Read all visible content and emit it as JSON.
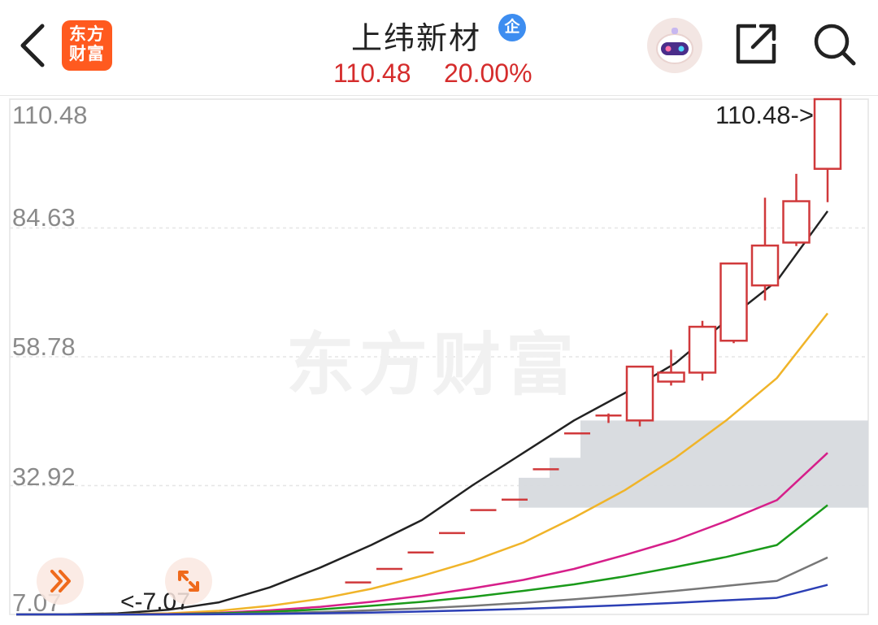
{
  "header": {
    "back_icon": "chevron-left-icon",
    "logo_text": "东方\n财富",
    "stock_name": "上纬新材",
    "badge_text": "企",
    "price": "110.48",
    "change_pct": "20.00%",
    "robot_icon": "robot-avatar-icon",
    "share_icon": "share-icon",
    "search_icon": "search-icon"
  },
  "chart": {
    "watermark": "东方财富",
    "y_labels": [
      "110.48",
      "84.63",
      "58.78",
      "32.92",
      "7.07"
    ],
    "max_marker": "110.48->",
    "min_marker": "<-7.07",
    "colors": {
      "up": "#d0393b",
      "ma5": "#222222",
      "ma10": "#f0b429",
      "ma20": "#d61f8a",
      "ma30": "#1a9a1a",
      "ma60": "#777777",
      "ma120": "#2c3fb5",
      "chip_band": "#d7dade"
    }
  },
  "chart_data": {
    "type": "candlestick",
    "ylim": [
      7.07,
      110.48
    ],
    "y_ticks": [
      110.48,
      84.63,
      58.78,
      32.92,
      7.07
    ],
    "candles": [
      {
        "open": 13.5,
        "close": 13.5,
        "high": 13.5,
        "low": 13.5
      },
      {
        "open": 16.2,
        "close": 16.2,
        "high": 16.2,
        "low": 16.2
      },
      {
        "open": 19.5,
        "close": 19.5,
        "high": 19.5,
        "low": 19.5
      },
      {
        "open": 23.4,
        "close": 23.4,
        "high": 23.4,
        "low": 23.4
      },
      {
        "open": 28.0,
        "close": 28.0,
        "high": 28.0,
        "low": 28.0
      },
      {
        "open": 30.1,
        "close": 30.1,
        "high": 30.1,
        "low": 30.1
      },
      {
        "open": 36.2,
        "close": 36.2,
        "high": 36.2,
        "low": 36.2
      },
      {
        "open": 43.4,
        "close": 43.4,
        "high": 43.4,
        "low": 43.4
      },
      {
        "open": 47.0,
        "close": 47.0,
        "high": 47.4,
        "low": 45.5
      },
      {
        "open": 46.0,
        "close": 56.8,
        "high": 56.8,
        "low": 44.8
      },
      {
        "open": 53.8,
        "close": 55.6,
        "high": 60.2,
        "low": 53.0
      },
      {
        "open": 55.6,
        "close": 64.8,
        "high": 66.0,
        "low": 54.0
      },
      {
        "open": 62.0,
        "close": 77.5,
        "high": 77.5,
        "low": 61.5
      },
      {
        "open": 73.1,
        "close": 81.1,
        "high": 90.7,
        "low": 70.1
      },
      {
        "open": 81.7,
        "close": 90.0,
        "high": 95.5,
        "low": 81.0
      },
      {
        "open": 96.5,
        "close": 110.48,
        "high": 110.48,
        "low": 89.8
      }
    ],
    "chip_band": {
      "low": 28.5,
      "steps": [
        [
          31.8,
          34.5
        ],
        [
          34.5,
          38.5
        ],
        [
          38.5,
          46.0
        ]
      ]
    },
    "series": [
      {
        "key": "ma5",
        "values": [
          7.07,
          7.1,
          7.3,
          8.0,
          9.5,
          12.5,
          16.5,
          21.0,
          26.0,
          33.0,
          39.5,
          46.0,
          51.5,
          57.5,
          66.0,
          74.0,
          88.0
        ]
      },
      {
        "key": "ma10",
        "values": [
          7.07,
          7.07,
          7.1,
          7.3,
          7.8,
          8.8,
          10.2,
          12.2,
          14.8,
          17.8,
          21.5,
          26.5,
          32.0,
          38.5,
          46.0,
          54.5,
          67.5
        ]
      },
      {
        "key": "ma20",
        "values": [
          7.07,
          7.07,
          7.08,
          7.15,
          7.4,
          7.9,
          8.6,
          9.6,
          10.8,
          12.3,
          14.0,
          16.2,
          19.0,
          22.0,
          25.8,
          30.0,
          39.5
        ]
      },
      {
        "key": "ma30",
        "values": [
          7.07,
          7.07,
          7.07,
          7.1,
          7.3,
          7.6,
          8.1,
          8.8,
          9.6,
          10.6,
          11.8,
          13.1,
          14.7,
          16.6,
          18.6,
          21.0,
          29.0
        ]
      },
      {
        "key": "ma60",
        "values": [
          7.07,
          7.07,
          7.07,
          7.08,
          7.15,
          7.3,
          7.55,
          7.9,
          8.3,
          8.8,
          9.4,
          10.1,
          10.9,
          11.8,
          12.8,
          13.8,
          18.5
        ]
      },
      {
        "key": "ma120",
        "values": [
          7.07,
          7.07,
          7.07,
          7.07,
          7.1,
          7.17,
          7.3,
          7.45,
          7.65,
          7.9,
          8.2,
          8.55,
          8.95,
          9.4,
          9.9,
          10.4,
          13.0
        ]
      }
    ]
  },
  "controls": {
    "collapse_icon": "double-chevron-right-icon",
    "expand_icon": "expand-arrows-icon"
  }
}
